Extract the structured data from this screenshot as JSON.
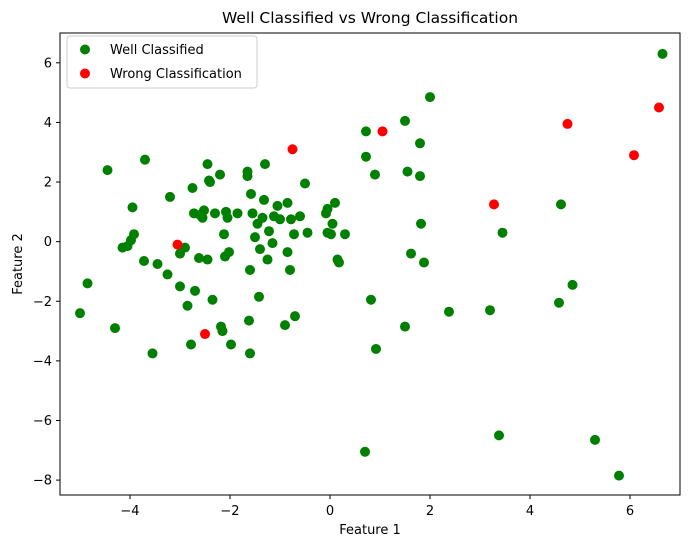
{
  "chart_data": {
    "type": "scatter",
    "title": "Well Classified vs Wrong Classification",
    "xlabel": "Feature 1",
    "ylabel": "Feature 2",
    "xlim": [
      -5.4,
      7.0
    ],
    "ylim": [
      -8.5,
      7.0
    ],
    "x_ticks": [
      -4,
      -2,
      0,
      2,
      4,
      6
    ],
    "y_ticks": [
      -8,
      -6,
      -4,
      -2,
      0,
      2,
      4,
      6
    ],
    "x_tick_labels": [
      "−4",
      "−2",
      "0",
      "2",
      "4",
      "6"
    ],
    "y_tick_labels": [
      "−8",
      "−6",
      "−4",
      "−2",
      "0",
      "2",
      "4",
      "6"
    ],
    "grid": false,
    "legend_position": "top-left",
    "series": [
      {
        "name": "Well Classified",
        "color": "#008000",
        "points": [
          [
            -5.0,
            -2.4
          ],
          [
            -4.85,
            -1.4
          ],
          [
            -4.45,
            2.4
          ],
          [
            -4.3,
            -2.9
          ],
          [
            -4.15,
            -0.2
          ],
          [
            -4.05,
            -0.15
          ],
          [
            -3.98,
            0.05
          ],
          [
            -3.95,
            1.15
          ],
          [
            -3.92,
            0.25
          ],
          [
            -3.7,
            2.75
          ],
          [
            -3.72,
            -0.65
          ],
          [
            -3.55,
            -3.75
          ],
          [
            -3.45,
            -0.75
          ],
          [
            -3.25,
            -1.1
          ],
          [
            -3.2,
            1.5
          ],
          [
            -3.0,
            -0.4
          ],
          [
            -3.0,
            -1.5
          ],
          [
            -2.9,
            -0.2
          ],
          [
            -2.85,
            -2.15
          ],
          [
            -2.78,
            -3.45
          ],
          [
            -2.75,
            1.8
          ],
          [
            -2.72,
            0.95
          ],
          [
            -2.7,
            -1.65
          ],
          [
            -2.62,
            -0.55
          ],
          [
            -2.6,
            0.9
          ],
          [
            -2.55,
            0.8
          ],
          [
            -2.52,
            1.05
          ],
          [
            -2.45,
            2.6
          ],
          [
            -2.45,
            -0.6
          ],
          [
            -2.42,
            2.05
          ],
          [
            -2.4,
            2.0
          ],
          [
            -2.35,
            -1.95
          ],
          [
            -2.3,
            0.95
          ],
          [
            -2.2,
            2.25
          ],
          [
            -2.18,
            -2.85
          ],
          [
            -2.15,
            -3.0
          ],
          [
            -2.12,
            0.25
          ],
          [
            -2.1,
            -0.5
          ],
          [
            -2.08,
            1.0
          ],
          [
            -2.05,
            0.8
          ],
          [
            -2.02,
            -0.35
          ],
          [
            -1.98,
            -3.45
          ],
          [
            -1.85,
            0.95
          ],
          [
            -1.65,
            2.2
          ],
          [
            -1.65,
            2.35
          ],
          [
            -1.62,
            -2.65
          ],
          [
            -1.6,
            -3.75
          ],
          [
            -1.6,
            -0.95
          ],
          [
            -1.58,
            1.6
          ],
          [
            -1.55,
            0.95
          ],
          [
            -1.5,
            0.15
          ],
          [
            -1.45,
            0.6
          ],
          [
            -1.42,
            -1.85
          ],
          [
            -1.4,
            -0.25
          ],
          [
            -1.35,
            0.8
          ],
          [
            -1.32,
            1.4
          ],
          [
            -1.3,
            2.6
          ],
          [
            -1.25,
            -0.6
          ],
          [
            -1.22,
            0.35
          ],
          [
            -1.15,
            -0.05
          ],
          [
            -1.12,
            0.85
          ],
          [
            -1.05,
            1.2
          ],
          [
            -1.0,
            0.75
          ],
          [
            -0.9,
            -2.8
          ],
          [
            -0.85,
            1.3
          ],
          [
            -0.85,
            -0.35
          ],
          [
            -0.8,
            -0.95
          ],
          [
            -0.78,
            0.75
          ],
          [
            -0.72,
            0.25
          ],
          [
            -0.7,
            -2.5
          ],
          [
            -0.6,
            0.85
          ],
          [
            -0.5,
            1.95
          ],
          [
            -0.45,
            0.3
          ],
          [
            -0.08,
            0.95
          ],
          [
            -0.05,
            1.1
          ],
          [
            -0.05,
            0.3
          ],
          [
            0.02,
            0.25
          ],
          [
            0.05,
            0.6
          ],
          [
            0.1,
            1.3
          ],
          [
            0.15,
            -0.6
          ],
          [
            0.18,
            -0.7
          ],
          [
            0.3,
            0.25
          ],
          [
            0.7,
            -7.05
          ],
          [
            0.72,
            3.7
          ],
          [
            0.72,
            2.85
          ],
          [
            0.82,
            -1.95
          ],
          [
            0.9,
            2.25
          ],
          [
            0.92,
            -3.6
          ],
          [
            1.5,
            -2.85
          ],
          [
            1.5,
            4.05
          ],
          [
            1.55,
            2.35
          ],
          [
            1.62,
            -0.4
          ],
          [
            1.8,
            3.3
          ],
          [
            1.8,
            2.2
          ],
          [
            1.82,
            0.6
          ],
          [
            1.88,
            -0.7
          ],
          [
            2.0,
            4.85
          ],
          [
            2.38,
            -2.35
          ],
          [
            3.2,
            -2.3
          ],
          [
            3.38,
            -6.5
          ],
          [
            3.45,
            0.3
          ],
          [
            4.58,
            -2.05
          ],
          [
            4.62,
            1.25
          ],
          [
            4.85,
            -1.45
          ],
          [
            5.3,
            -6.65
          ],
          [
            5.78,
            -7.85
          ],
          [
            6.65,
            6.3
          ]
        ]
      },
      {
        "name": "Wrong Classification",
        "color": "#ff0000",
        "points": [
          [
            -3.05,
            -0.1
          ],
          [
            -2.5,
            -3.1
          ],
          [
            -0.75,
            3.1
          ],
          [
            1.05,
            3.7
          ],
          [
            3.28,
            1.25
          ],
          [
            4.75,
            3.95
          ],
          [
            6.08,
            2.9
          ],
          [
            6.58,
            4.5
          ]
        ]
      }
    ]
  }
}
